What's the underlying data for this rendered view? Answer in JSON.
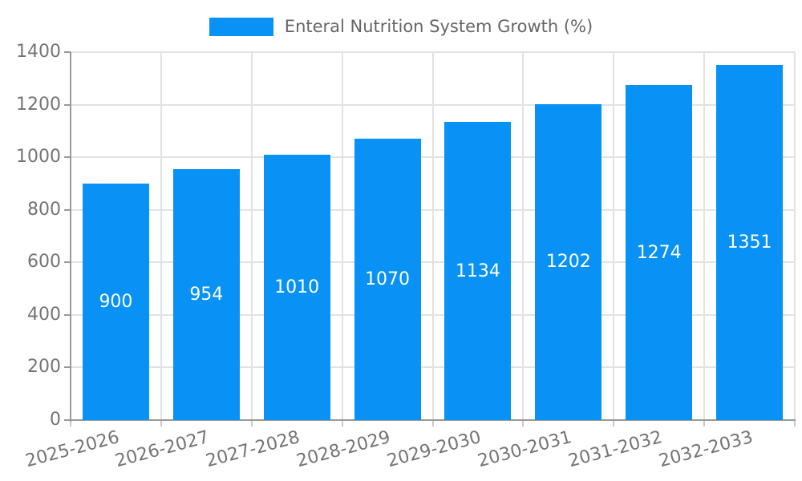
{
  "chart_data": {
    "type": "bar",
    "title": "Enteral Nutrition System Growth (%)",
    "categories": [
      "2025-2026",
      "2026-2027",
      "2027-2028",
      "2028-2029",
      "2029-2030",
      "2030-2031",
      "2031-2032",
      "2032-2033"
    ],
    "series": [
      {
        "name": "Enteral Nutrition System Growth (%)",
        "values": [
          900,
          954,
          1010,
          1070,
          1134,
          1202,
          1274,
          1351
        ]
      }
    ],
    "xlabel": "",
    "ylabel": "",
    "ylim": [
      0,
      1400
    ],
    "yticks": [
      0,
      200,
      400,
      600,
      800,
      1000,
      1200,
      1400
    ],
    "grid": true,
    "legend_position": "top-center",
    "value_label_position": "inside-center",
    "x_label_rotation_deg": 15
  },
  "colors": {
    "bar": "#0892f5",
    "value_label": "#ffffff",
    "grid": "#e2e2e2",
    "axis": "#999999",
    "x_tick": "#c9c9c9",
    "axis_label": "#757575",
    "legend_text": "#666666"
  }
}
